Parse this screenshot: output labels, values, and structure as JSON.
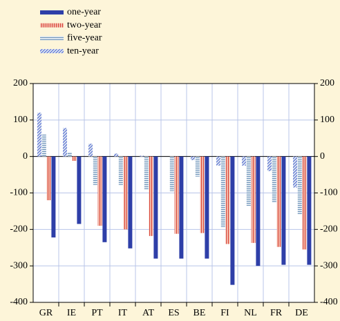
{
  "chart_data": {
    "type": "bar",
    "categories": [
      "GR",
      "IE",
      "PT",
      "IT",
      "AT",
      "ES",
      "BE",
      "FI",
      "NL",
      "FR",
      "DE"
    ],
    "series": [
      {
        "name": "one-year",
        "color": "#2e3fa8",
        "hatch": "solid",
        "values": [
          -222,
          -185,
          -235,
          -252,
          -280,
          -280,
          -280,
          -352,
          -300,
          -297,
          -297
        ]
      },
      {
        "name": "two-year",
        "color": "#d9473a",
        "hatch": "vertical",
        "values": [
          -120,
          -12,
          -190,
          -200,
          -218,
          -212,
          -210,
          -240,
          -237,
          -248,
          -255
        ]
      },
      {
        "name": "five-year",
        "color": "#6e93b8",
        "hatch": "horizontal",
        "values": [
          60,
          12,
          -78,
          -78,
          -90,
          -95,
          -55,
          -195,
          -135,
          -127,
          -158
        ]
      },
      {
        "name": "ten-year",
        "color": "#4a5fd0",
        "hatch": "diagonal",
        "values": [
          120,
          78,
          35,
          8,
          2,
          0,
          -10,
          -25,
          -25,
          -40,
          -85
        ]
      }
    ],
    "draw_order": [
      3,
      2,
      1,
      0
    ],
    "ylim": [
      -400,
      200
    ],
    "yticks": [
      -400,
      -300,
      -200,
      -100,
      0,
      100,
      200
    ],
    "grid": true
  }
}
